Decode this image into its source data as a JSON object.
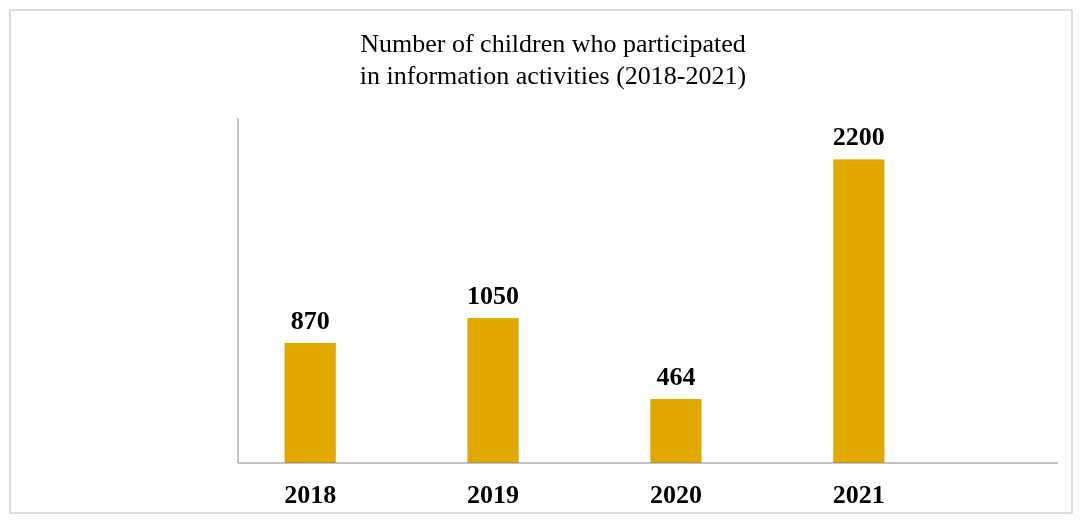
{
  "chart_data": {
    "type": "bar",
    "title": "Number of children who participated\nin information activities (2018-2021)",
    "categories": [
      "2018",
      "2019",
      "2020",
      "2021"
    ],
    "values": [
      870,
      1050,
      464,
      2200
    ],
    "color": "#e1a800",
    "ylim": [
      0,
      2500
    ],
    "data_labels": true
  }
}
